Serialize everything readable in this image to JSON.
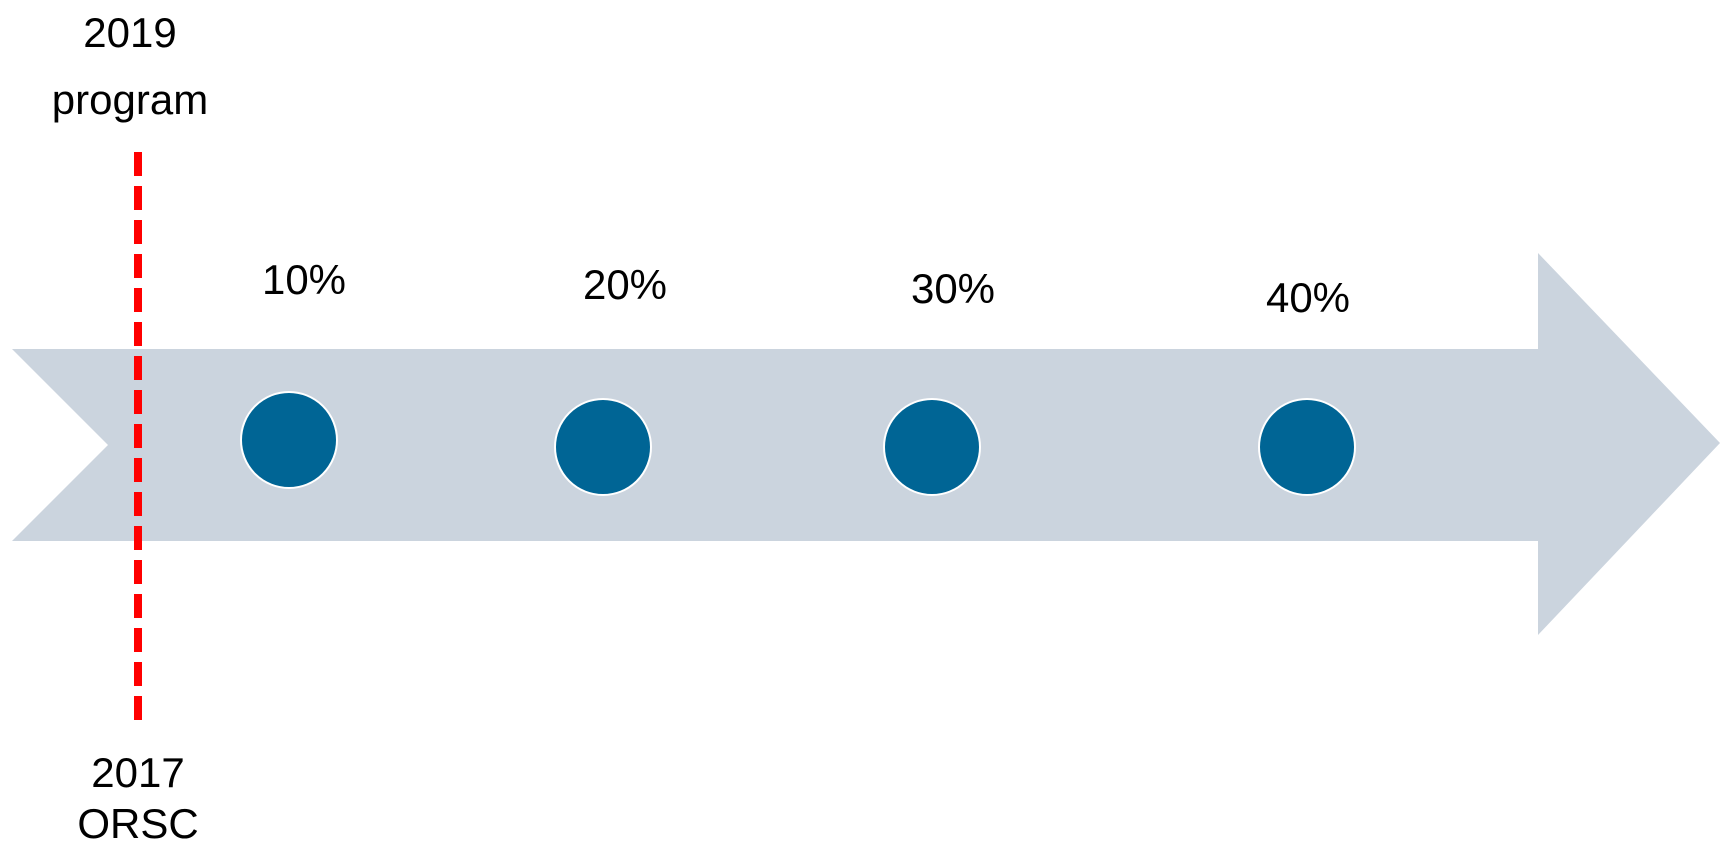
{
  "top_marker": {
    "line1": "2019",
    "line2": "program"
  },
  "bottom_marker": {
    "line1": "2017",
    "line2": "ORSC"
  },
  "milestones": [
    {
      "label": "10%"
    },
    {
      "label": "20%"
    },
    {
      "label": "30%"
    },
    {
      "label": "40%"
    }
  ],
  "colors": {
    "arrow": "#cbd4de",
    "milestone_dot": "#006595",
    "milestone_dot_border": "#ffffff",
    "marker_line": "#ff0000",
    "text": "#000000"
  }
}
